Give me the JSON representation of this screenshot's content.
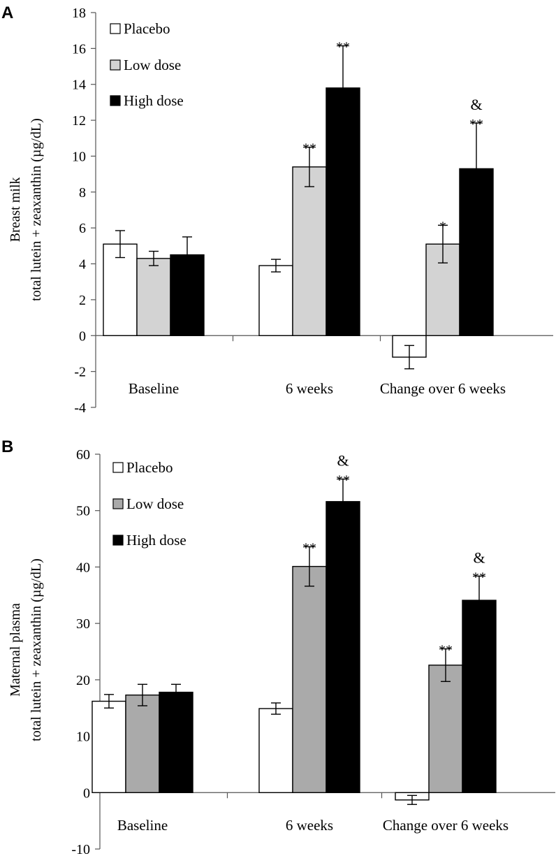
{
  "chart_data": [
    {
      "type": "bar",
      "panel": "A",
      "ylabel_line1": "Breast milk",
      "ylabel_line2": "total lutein + zeaxanthin (µg/dL)",
      "ylim": [
        -4,
        18
      ],
      "yticks": [
        -4,
        -2,
        0,
        2,
        4,
        6,
        8,
        10,
        12,
        14,
        16,
        18
      ],
      "categories": [
        "Baseline",
        "6 weeks",
        "Change over 6 weeks"
      ],
      "series": [
        {
          "name": "Placebo",
          "color": "#ffffff",
          "values": [
            5.1,
            3.9,
            -1.2
          ],
          "errors": [
            0.75,
            0.35,
            0.65
          ],
          "annotations": [
            "",
            "",
            ""
          ]
        },
        {
          "name": "Low dose",
          "color": "#d3d3d3",
          "values": [
            4.3,
            9.4,
            5.1
          ],
          "errors": [
            0.4,
            1.1,
            1.05
          ],
          "annotations": [
            "",
            "**",
            "*"
          ]
        },
        {
          "name": "High dose",
          "color": "#000000",
          "values": [
            4.5,
            13.8,
            9.3
          ],
          "errors": [
            1.0,
            2.35,
            2.55
          ],
          "annotations": [
            "",
            "**",
            "&\n**"
          ]
        }
      ]
    },
    {
      "type": "bar",
      "panel": "B",
      "ylabel_line1": "Maternal plasma",
      "ylabel_line2": "total lutein + zeaxanthin (µg/dL)",
      "ylim": [
        -10,
        60
      ],
      "yticks": [
        -10,
        0,
        10,
        20,
        30,
        40,
        50,
        60
      ],
      "categories": [
        "Baseline",
        "6 weeks",
        "Change over 6 weeks"
      ],
      "series": [
        {
          "name": "Placebo",
          "color": "#ffffff",
          "values": [
            16.2,
            14.9,
            -1.3
          ],
          "errors": [
            1.2,
            1.0,
            0.8
          ],
          "annotations": [
            "",
            "",
            ""
          ]
        },
        {
          "name": "Low dose",
          "color": "#aaaaaa",
          "values": [
            17.3,
            40.1,
            22.6
          ],
          "errors": [
            1.9,
            3.5,
            2.9
          ],
          "annotations": [
            "",
            "**",
            "**"
          ]
        },
        {
          "name": "High dose",
          "color": "#000000",
          "values": [
            17.8,
            51.6,
            34.1
          ],
          "errors": [
            1.4,
            4.0,
            4.3
          ],
          "annotations": [
            "",
            "&\n**",
            "&\n**"
          ]
        }
      ]
    }
  ]
}
